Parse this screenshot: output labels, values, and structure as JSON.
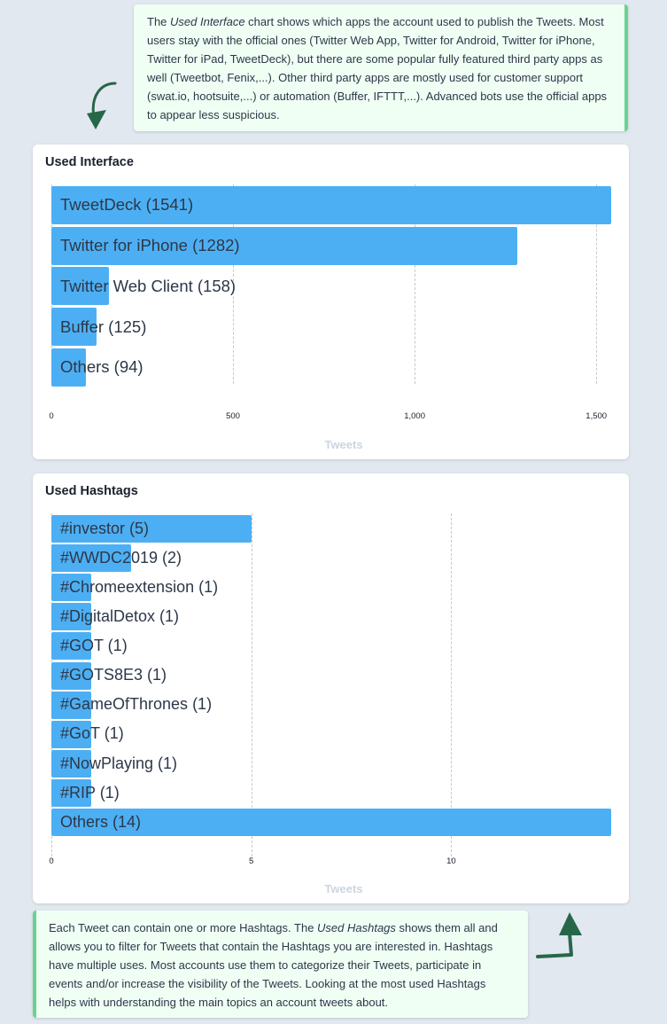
{
  "notes": {
    "top": {
      "prefix": "The ",
      "em": "Used Interface",
      "suffix": " chart shows which apps the account used to publish the Tweets. Most users stay with the official ones (Twitter Web App, Twitter for Android, Twitter for iPhone, Twitter for iPad, TweetDeck), but there are some popular fully featured third party apps as well (Tweetbot, Fenix,...). Other third party apps are mostly used for customer support (swat.io, hootsuite,...) or automation (Buffer, IFTTT,...). Advanced bots use the official apps to appear less suspicious."
    },
    "bottom": {
      "prefix": "Each Tweet can contain one or more Hashtags. The ",
      "em": "Used Hashtags",
      "suffix": " shows them all and allows you to filter for Tweets that contain the Hashtags you are interested in. Hashtags have multiple uses. Most accounts use them to categorize their Tweets, participate in events and/or increase the visibility of the Tweets. Looking at the most used Hashtags helps with understanding the main topics an account tweets about."
    },
    "accent_color": "#68d391",
    "background": "#f0fff4"
  },
  "icons": {
    "top_arrow": "curved-arrow-down-icon",
    "bottom_arrow": "arrow-up-icon",
    "arrow_color": "#276749"
  },
  "colors": {
    "bar": "#4daff3",
    "page_bg": "#e2e8f0",
    "axis_title": "#cbd5e0"
  },
  "chart_data": [
    {
      "type": "bar",
      "orientation": "horizontal",
      "title": "Used Interface",
      "categories": [
        "TweetDeck",
        "Twitter for iPhone",
        "Twitter Web Client",
        "Buffer",
        "Others"
      ],
      "values": [
        1541,
        1282,
        158,
        125,
        94
      ],
      "labels": [
        "TweetDeck (1541)",
        "Twitter for iPhone (1282)",
        "Twitter Web Client (158)",
        "Buffer (125)",
        "Others (94)"
      ],
      "xlabel": "Tweets",
      "ylabel": "",
      "xlim": [
        0,
        1541
      ],
      "xticks": [
        "0",
        "500",
        "1,000",
        "1,500"
      ],
      "grid": true
    },
    {
      "type": "bar",
      "orientation": "horizontal",
      "title": "Used Hashtags",
      "categories": [
        "#investor",
        "#WWDC2019",
        "#Chromeextension",
        "#DigitalDetox",
        "#GOT",
        "#GOTS8E3",
        "#GameOfThrones",
        "#GoT",
        "#NowPlaying",
        "#RIP",
        "Others"
      ],
      "values": [
        5,
        2,
        1,
        1,
        1,
        1,
        1,
        1,
        1,
        1,
        14
      ],
      "labels": [
        "#investor (5)",
        "#WWDC2019 (2)",
        "#Chromeextension (1)",
        "#DigitalDetox (1)",
        "#GOT (1)",
        "#GOTS8E3 (1)",
        "#GameOfThrones (1)",
        "#GoT (1)",
        "#NowPlaying (1)",
        "#RIP (1)",
        "Others (14)"
      ],
      "xlabel": "Tweets",
      "ylabel": "",
      "xlim": [
        0,
        14
      ],
      "xticks": [
        "0",
        "5",
        "10"
      ],
      "grid": true
    }
  ]
}
